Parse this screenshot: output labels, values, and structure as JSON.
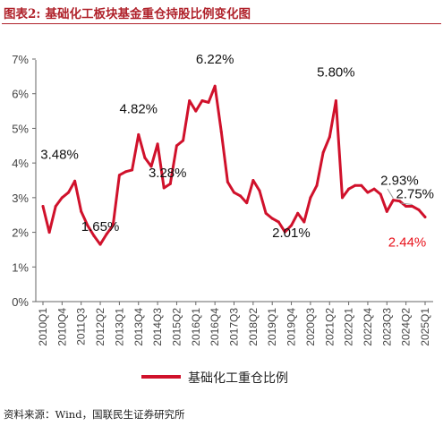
{
  "figure": {
    "label": "图表2:",
    "title": "基础化工板块基金重仓持股比例变化图",
    "source": "资料来源：Wind，国联民生证券研究所"
  },
  "colors": {
    "series": "#d0112b",
    "axis": "#666666",
    "header": "#b0222b",
    "highlight": "#e8131c"
  },
  "chart_data": {
    "type": "line",
    "title": "",
    "xlabel": "",
    "ylabel": "",
    "ylim": [
      0,
      7
    ],
    "yticks": [
      0,
      1,
      2,
      3,
      4,
      5,
      6,
      7
    ],
    "ytick_labels": [
      "0%",
      "1%",
      "2%",
      "3%",
      "4%",
      "5%",
      "6%",
      "7%"
    ],
    "x_tick_labels": [
      "2010Q1",
      "2010Q4",
      "2011Q3",
      "2012Q2",
      "2013Q1",
      "2013Q4",
      "2014Q3",
      "2015Q2",
      "2016Q1",
      "2016Q4",
      "2017Q3",
      "2018Q2",
      "2019Q1",
      "2019Q4",
      "2020Q3",
      "2021Q2",
      "2022Q1",
      "2022Q4",
      "2023Q3",
      "2024Q2",
      "2025Q1"
    ],
    "grid": false,
    "legend_position": "bottom",
    "series": [
      {
        "name": "基础化工重仓比例",
        "color": "#d0112b",
        "x": [
          "2010Q1",
          "2010Q2",
          "2010Q3",
          "2010Q4",
          "2011Q1",
          "2011Q2",
          "2011Q3",
          "2011Q4",
          "2012Q1",
          "2012Q2",
          "2012Q3",
          "2012Q4",
          "2013Q1",
          "2013Q2",
          "2013Q3",
          "2013Q4",
          "2014Q1",
          "2014Q2",
          "2014Q3",
          "2014Q4",
          "2015Q1",
          "2015Q2",
          "2015Q3",
          "2015Q4",
          "2016Q1",
          "2016Q2",
          "2016Q3",
          "2016Q4",
          "2017Q1",
          "2017Q2",
          "2017Q3",
          "2017Q4",
          "2018Q1",
          "2018Q2",
          "2018Q3",
          "2018Q4",
          "2019Q1",
          "2019Q2",
          "2019Q3",
          "2019Q4",
          "2020Q1",
          "2020Q2",
          "2020Q3",
          "2020Q4",
          "2021Q1",
          "2021Q2",
          "2021Q3",
          "2021Q4",
          "2022Q1",
          "2022Q2",
          "2022Q3",
          "2022Q4",
          "2023Q1",
          "2023Q2",
          "2023Q3",
          "2023Q4",
          "2024Q1",
          "2024Q2",
          "2024Q3",
          "2024Q4",
          "2025Q1"
        ],
        "values": [
          2.75,
          2.0,
          2.75,
          3.0,
          3.15,
          3.48,
          2.6,
          2.2,
          1.9,
          1.65,
          1.95,
          2.2,
          3.65,
          3.75,
          3.8,
          4.82,
          4.15,
          3.9,
          4.55,
          3.28,
          3.4,
          4.5,
          4.65,
          5.8,
          5.5,
          5.8,
          5.75,
          6.22,
          4.9,
          3.45,
          3.15,
          3.05,
          2.85,
          3.5,
          3.2,
          2.55,
          2.4,
          2.3,
          2.01,
          2.2,
          2.55,
          2.3,
          3.0,
          3.35,
          4.3,
          4.75,
          5.8,
          3.0,
          3.25,
          3.35,
          3.35,
          3.15,
          3.25,
          3.1,
          2.6,
          2.93,
          2.9,
          2.75,
          2.75,
          2.65,
          2.44
        ]
      }
    ],
    "annotations": [
      {
        "text": "3.48%",
        "x": "2011Q2",
        "value": 3.48
      },
      {
        "text": "1.65%",
        "x": "2012Q2",
        "value": 1.65
      },
      {
        "text": "4.82%",
        "x": "2013Q4",
        "value": 4.82
      },
      {
        "text": "3.28%",
        "x": "2014Q4",
        "value": 3.28
      },
      {
        "text": "6.22%",
        "x": "2016Q4",
        "value": 6.22
      },
      {
        "text": "2.01%",
        "x": "2019Q3",
        "value": 2.01
      },
      {
        "text": "5.80%",
        "x": "2021Q3",
        "value": 5.8
      },
      {
        "text": "2.93%",
        "x": "2023Q4",
        "value": 2.93
      },
      {
        "text": "2.75%",
        "x": "2024Q3",
        "value": 2.75
      },
      {
        "text": "2.44%",
        "x": "2025Q1",
        "value": 2.44,
        "highlight": true
      }
    ]
  }
}
